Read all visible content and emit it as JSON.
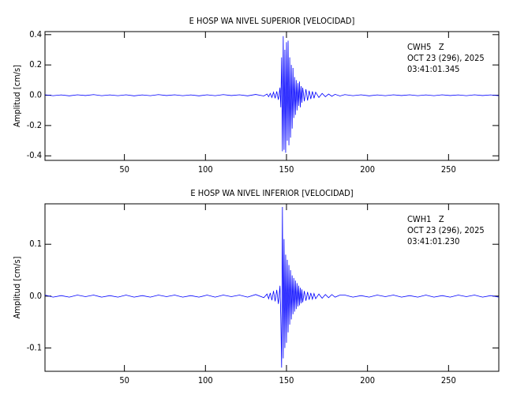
{
  "chart_data": [
    {
      "type": "line",
      "title": "E HOSP WA NIVEL SUPERIOR [VELOCIDAD]",
      "ylabel": "Amplitud [cm/s]",
      "annotations": [
        "CWH5   Z",
        "OCT 23 (296), 2025",
        "03:41:01.345"
      ],
      "color": "#0000ff",
      "xlim": [
        1,
        281
      ],
      "xticks": [
        50,
        100,
        150,
        200,
        250
      ],
      "ylim": [
        -0.43,
        0.42
      ],
      "yticks": [
        -0.4,
        -0.2,
        {
          "value": 0,
          "label": "0.0"
        },
        0.2,
        0.4
      ],
      "x": [
        1,
        6,
        11,
        16,
        21,
        26,
        31,
        36,
        41,
        46,
        51,
        56,
        61,
        66,
        71,
        76,
        81,
        86,
        91,
        96,
        101,
        106,
        111,
        116,
        121,
        126,
        131,
        136,
        138,
        139,
        140,
        141,
        142,
        143,
        144,
        145,
        146,
        146.5,
        147,
        147.5,
        148,
        148.5,
        149,
        149.5,
        150,
        150.5,
        151,
        151.5,
        152,
        152.5,
        153,
        153.5,
        154,
        154.5,
        155,
        155.5,
        156,
        156.5,
        157,
        157.5,
        158,
        158.5,
        159,
        159.5,
        160,
        161,
        162,
        163,
        164,
        165,
        166,
        167,
        168,
        170,
        172,
        174,
        176,
        178,
        180,
        183,
        186,
        191,
        196,
        201,
        206,
        211,
        216,
        221,
        226,
        231,
        236,
        241,
        246,
        251,
        256,
        261,
        266,
        271,
        276,
        281
      ],
      "values": [
        0.003,
        -0.003,
        0.002,
        -0.004,
        0.003,
        -0.002,
        0.004,
        -0.003,
        0.002,
        -0.003,
        0.003,
        -0.004,
        0.002,
        -0.003,
        0.004,
        -0.002,
        0.003,
        -0.003,
        0.002,
        -0.004,
        0.003,
        -0.003,
        0.004,
        -0.002,
        0.003,
        -0.004,
        0.005,
        -0.005,
        0.008,
        -0.01,
        0.012,
        -0.015,
        0.02,
        -0.02,
        0.025,
        -0.03,
        0.05,
        -0.08,
        0.25,
        -0.37,
        0.39,
        -0.36,
        0.3,
        -0.38,
        0.35,
        -0.3,
        0.36,
        -0.33,
        0.25,
        -0.28,
        0.2,
        -0.22,
        0.18,
        -0.15,
        0.12,
        -0.13,
        0.1,
        -0.1,
        0.08,
        -0.07,
        0.09,
        -0.08,
        0.06,
        -0.05,
        0.05,
        -0.04,
        0.04,
        -0.035,
        0.03,
        -0.025,
        0.025,
        -0.02,
        0.02,
        -0.015,
        0.012,
        -0.01,
        0.008,
        -0.007,
        0.006,
        -0.005,
        0.004,
        -0.003,
        0.003,
        -0.004,
        0.002,
        -0.003,
        0.003,
        -0.002,
        0.003,
        -0.003,
        0.002,
        -0.003,
        0.003,
        -0.002,
        0.002,
        -0.003,
        0.003,
        -0.002,
        0.002,
        -0.003
      ]
    },
    {
      "type": "line",
      "title": "E HOSP WA NIVEL INFERIOR [VELOCIDAD]",
      "ylabel": "Amplitud [cm/s]",
      "annotations": [
        "CWH1   Z",
        "OCT 23 (296), 2025",
        "03:41:01.230"
      ],
      "color": "#0000ff",
      "xlim": [
        1,
        281
      ],
      "xticks": [
        50,
        100,
        150,
        200,
        250
      ],
      "ylim": [
        -0.145,
        0.178
      ],
      "yticks": [
        -0.1,
        {
          "value": 0,
          "label": "0.0"
        },
        0.1
      ],
      "x": [
        1,
        6,
        11,
        16,
        21,
        26,
        31,
        36,
        41,
        46,
        51,
        56,
        61,
        66,
        71,
        76,
        81,
        86,
        91,
        96,
        101,
        106,
        111,
        116,
        121,
        126,
        131,
        136,
        138,
        139,
        140,
        141,
        142,
        143,
        144,
        145,
        146,
        146.5,
        147,
        147.5,
        148,
        148.5,
        149,
        149.5,
        150,
        150.5,
        151,
        151.5,
        152,
        152.5,
        153,
        153.5,
        154,
        154.5,
        155,
        155.5,
        156,
        156.5,
        157,
        157.5,
        158,
        158.5,
        159,
        159.5,
        160,
        161,
        162,
        163,
        164,
        165,
        166,
        167,
        168,
        170,
        172,
        174,
        176,
        178,
        180,
        183,
        186,
        191,
        196,
        201,
        206,
        211,
        216,
        221,
        226,
        231,
        236,
        241,
        246,
        251,
        256,
        261,
        266,
        271,
        276,
        281
      ],
      "values": [
        0.002,
        -0.002,
        0.001,
        -0.002,
        0.002,
        -0.001,
        0.002,
        -0.002,
        0.001,
        -0.002,
        0.002,
        -0.002,
        0.001,
        -0.002,
        0.002,
        -0.001,
        0.002,
        -0.002,
        0.001,
        -0.002,
        0.002,
        -0.002,
        0.002,
        -0.001,
        0.002,
        -0.002,
        0.003,
        -0.003,
        0.004,
        -0.005,
        0.006,
        -0.008,
        0.01,
        -0.01,
        0.012,
        -0.015,
        0.02,
        -0.04,
        -0.138,
        0.172,
        -0.12,
        0.11,
        -0.1,
        0.08,
        -0.09,
        0.07,
        -0.07,
        0.06,
        -0.055,
        0.05,
        -0.045,
        0.04,
        -0.035,
        0.035,
        -0.03,
        0.03,
        -0.025,
        0.025,
        -0.02,
        0.02,
        -0.018,
        0.016,
        -0.014,
        0.013,
        -0.012,
        0.01,
        -0.009,
        0.008,
        -0.007,
        0.006,
        -0.006,
        0.005,
        -0.005,
        0.004,
        -0.004,
        0.003,
        -0.003,
        0.003,
        -0.002,
        0.002,
        0.002,
        -0.002,
        0.001,
        -0.002,
        0.002,
        -0.001,
        0.002,
        -0.002,
        0.001,
        -0.002,
        0.002,
        -0.002,
        0.001,
        -0.002,
        0.002,
        -0.001,
        0.002,
        -0.002,
        0.001,
        -0.002
      ]
    }
  ]
}
